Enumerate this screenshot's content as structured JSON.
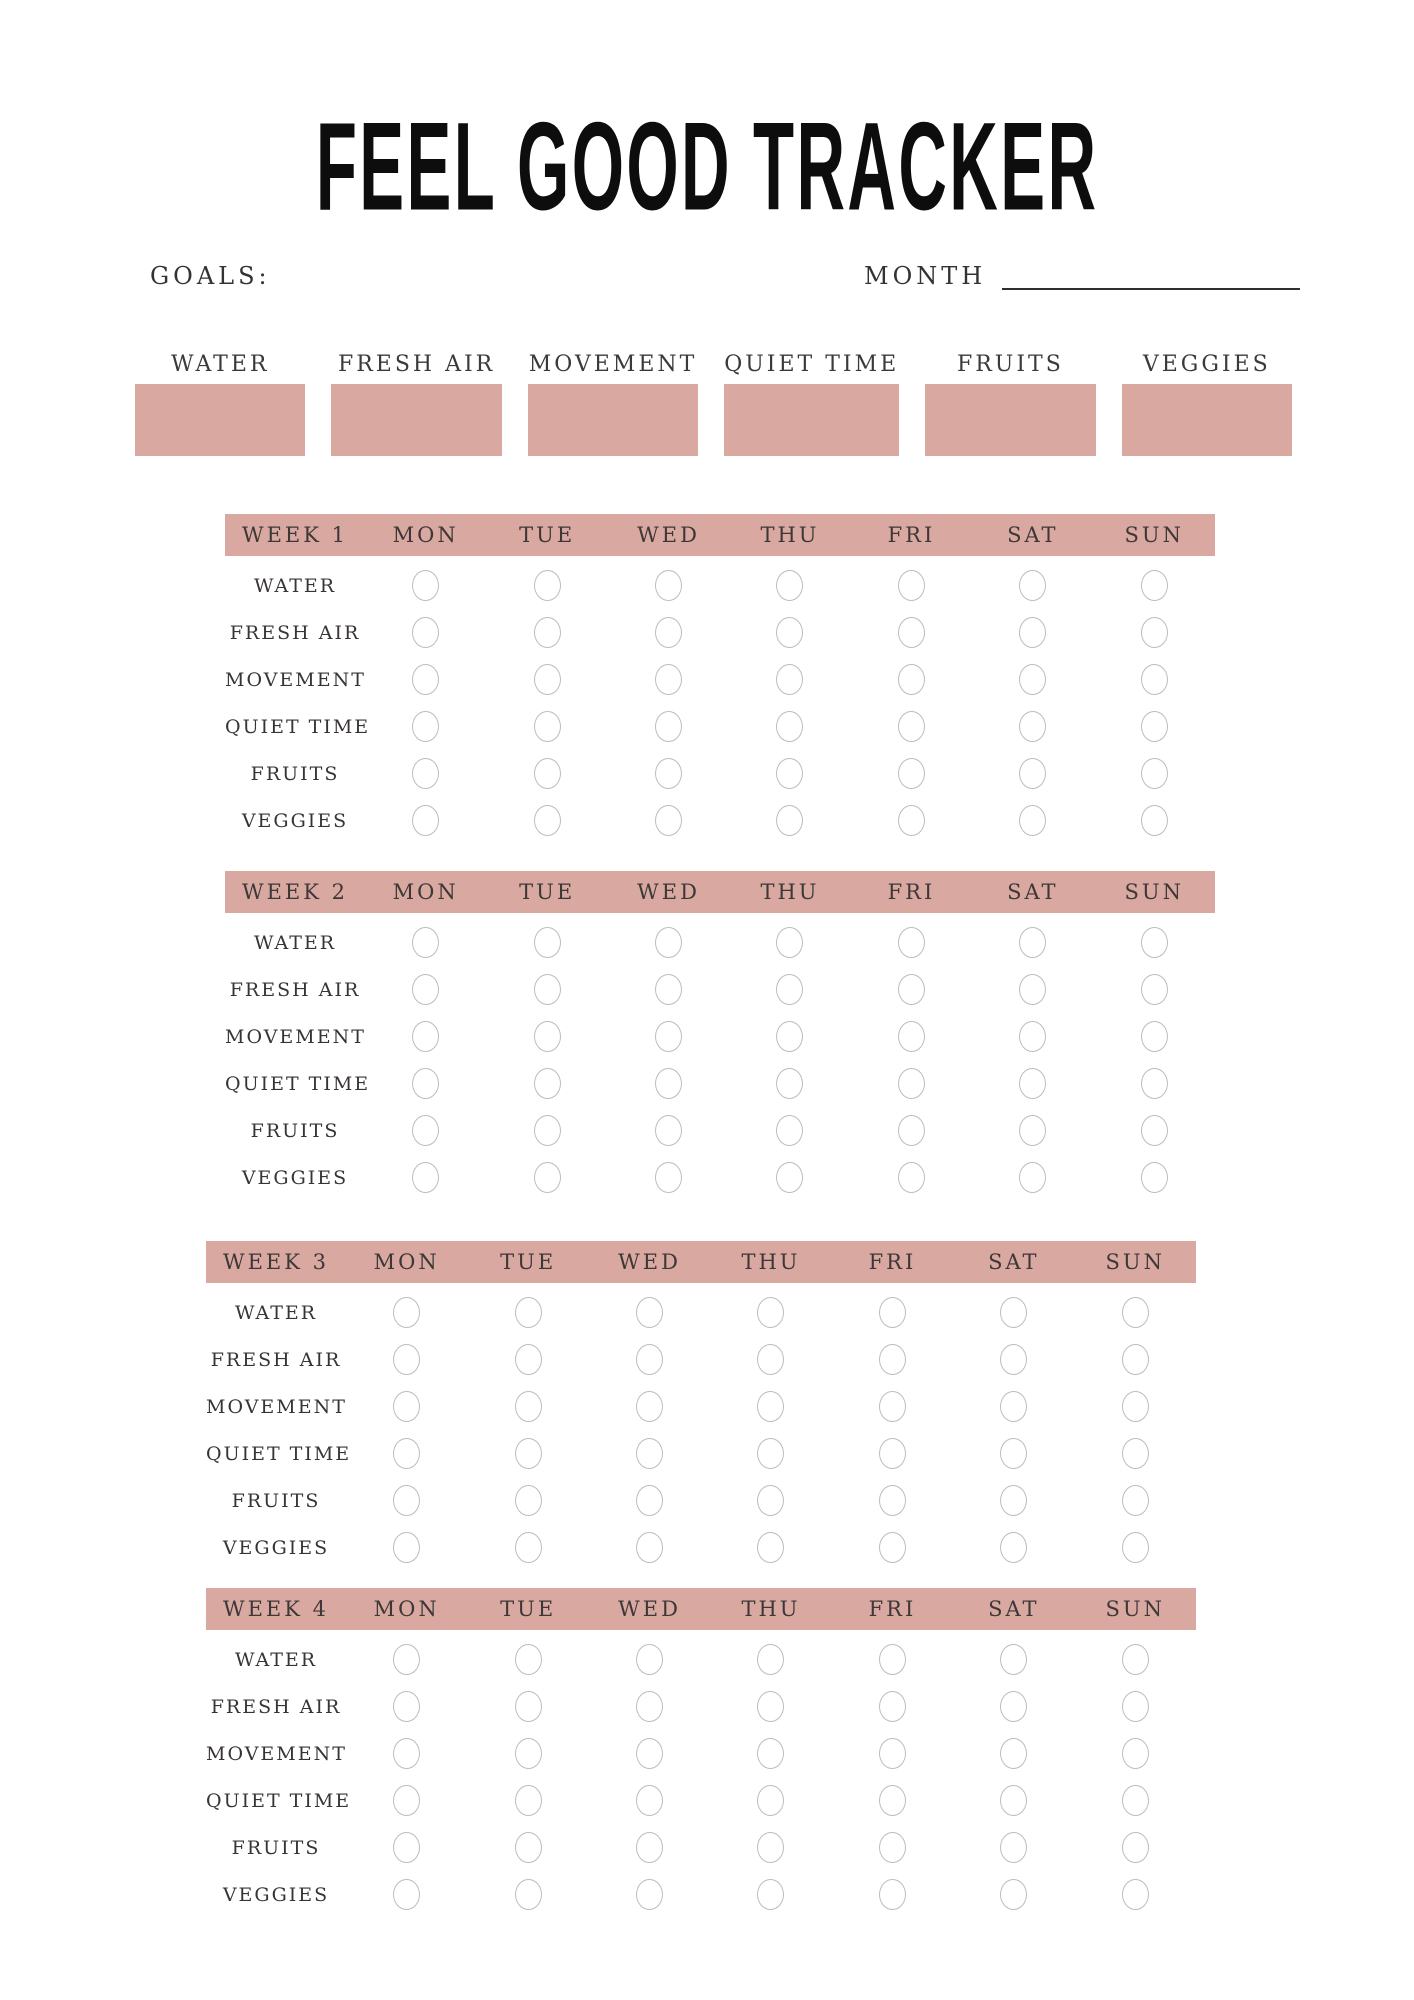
{
  "title": "FEEL GOOD TRACKER",
  "goals": {
    "label": "GOALS:"
  },
  "month": {
    "label": "MONTH",
    "value": ""
  },
  "categories": [
    "WATER",
    "FRESH AIR",
    "MOVEMENT",
    "QUIET TIME",
    "FRUITS",
    "VEGGIES"
  ],
  "days": [
    "MON",
    "TUE",
    "WED",
    "THU",
    "FRI",
    "SAT",
    "SUN"
  ],
  "habits": [
    "WATER",
    "FRESH AIR",
    "MOVEMENT",
    "QUIET TIME",
    "FRUITS",
    "VEGGIES"
  ],
  "weeks": [
    {
      "label": "WEEK 1"
    },
    {
      "label": "WEEK 2"
    },
    {
      "label": "WEEK 3"
    },
    {
      "label": "WEEK 4"
    }
  ],
  "checkbox_state": "unchecked",
  "colors": {
    "accent": "#d8a8a1",
    "circle_border": "#bdbdbd",
    "text": "#3a3a3a",
    "title": "#0d0d0d"
  }
}
